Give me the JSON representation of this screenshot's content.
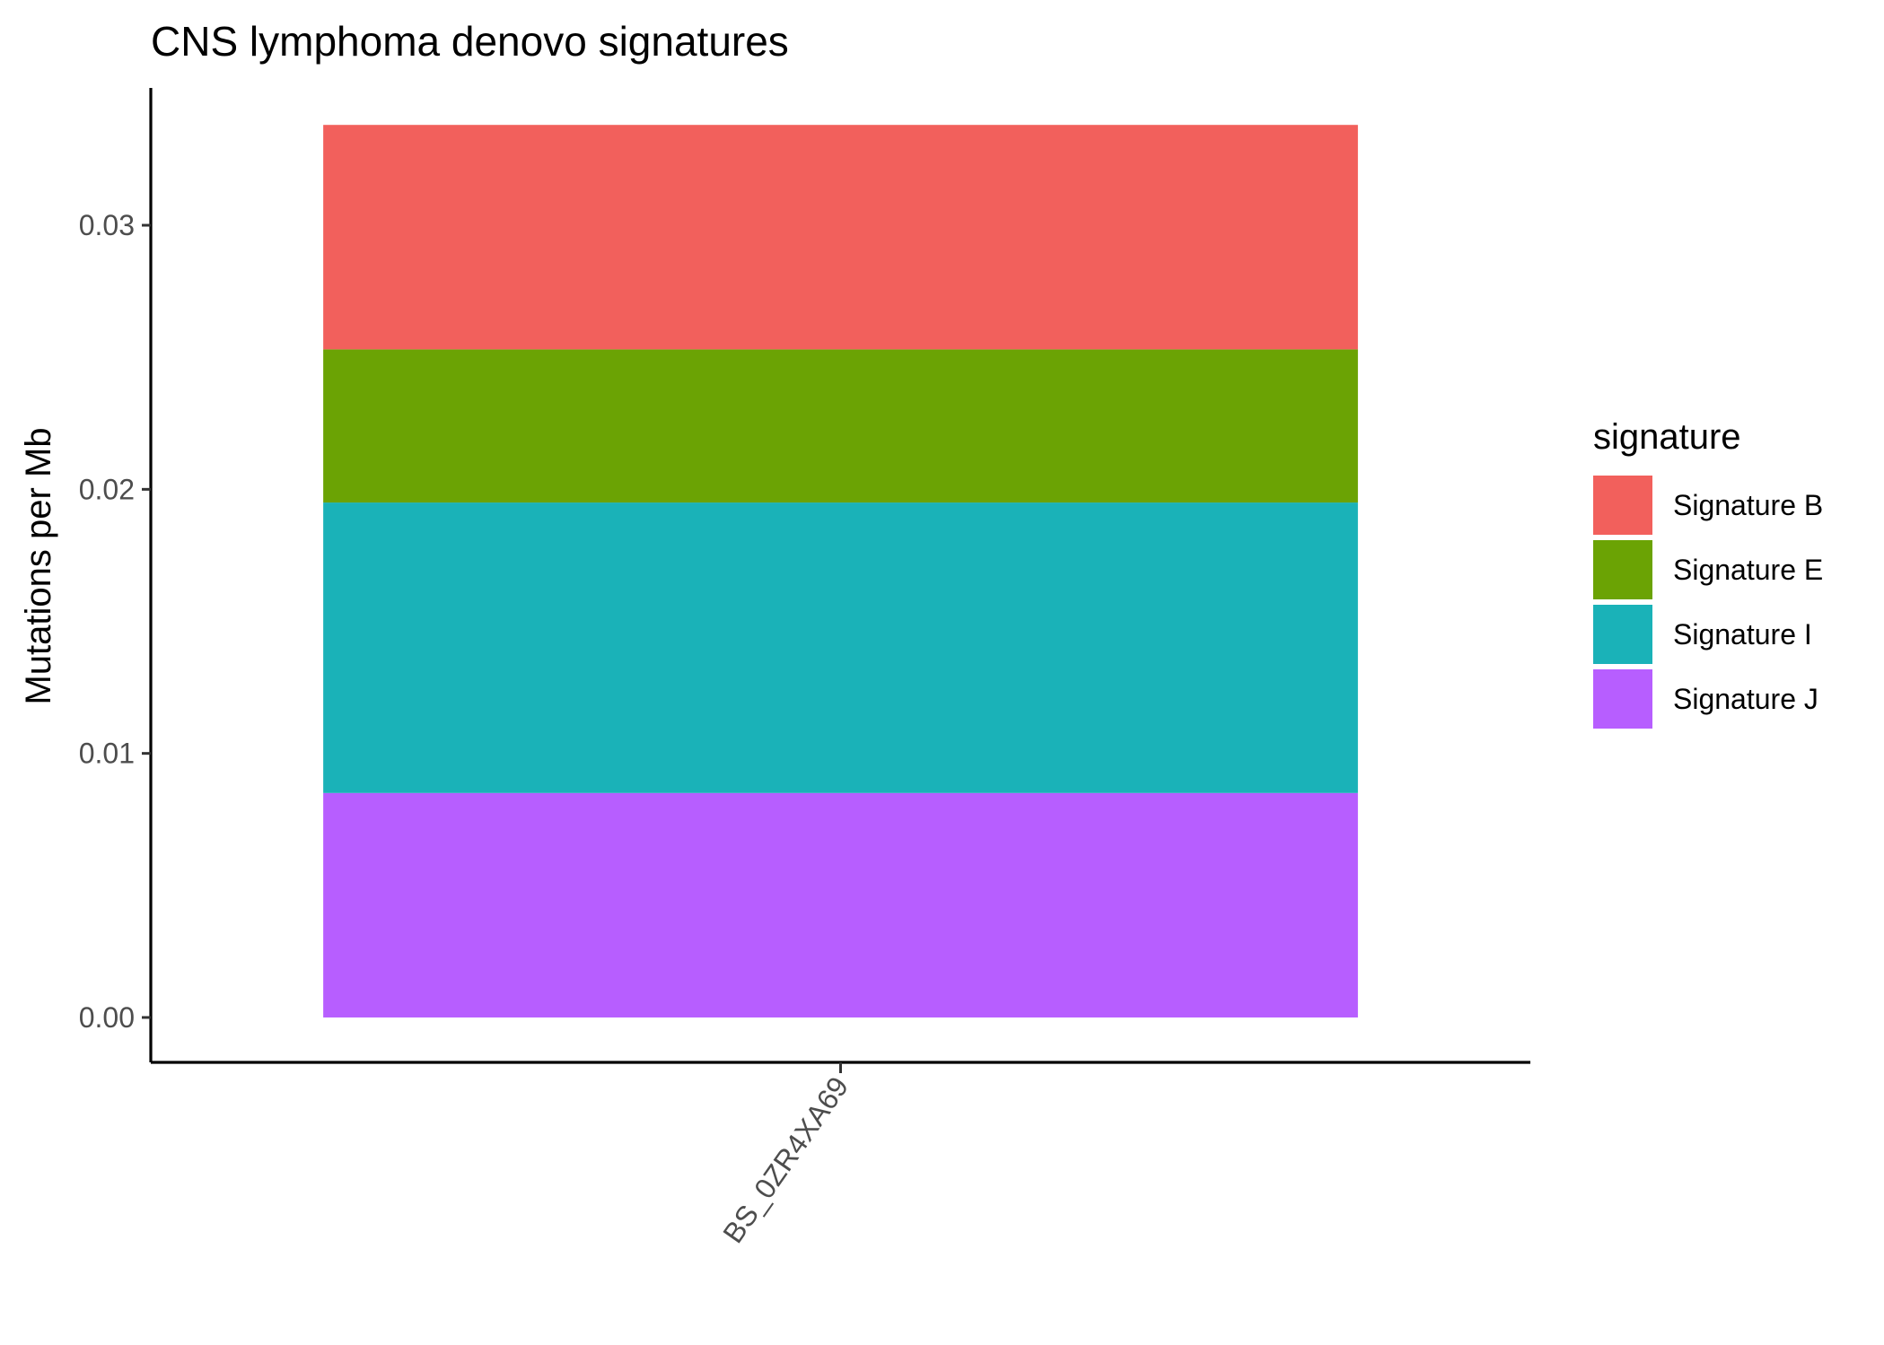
{
  "chart_data": {
    "type": "bar",
    "stacked": true,
    "title": "CNS lymphoma denovo signatures",
    "xlabel": "",
    "ylabel": "Mutations per Mb",
    "categories": [
      "BS_0ZR4XA69"
    ],
    "ylim": [
      -0.0017,
      0.0352
    ],
    "yticks": [
      0.0,
      0.01,
      0.02,
      0.03
    ],
    "ytick_labels": [
      "0.00",
      "0.01",
      "0.02",
      "0.03"
    ],
    "grid": false,
    "legend": {
      "title": "signature",
      "position": "right"
    },
    "series": [
      {
        "name": "Signature J",
        "color": "#B75EFF",
        "values": [
          0.0085
        ]
      },
      {
        "name": "Signature I",
        "color": "#1AB2B8",
        "values": [
          0.011
        ]
      },
      {
        "name": "Signature E",
        "color": "#6BA304",
        "values": [
          0.0058
        ]
      },
      {
        "name": "Signature B",
        "color": "#F2605C",
        "values": [
          0.0085
        ]
      }
    ],
    "legend_order": [
      "Signature B",
      "Signature E",
      "Signature I",
      "Signature J"
    ]
  }
}
